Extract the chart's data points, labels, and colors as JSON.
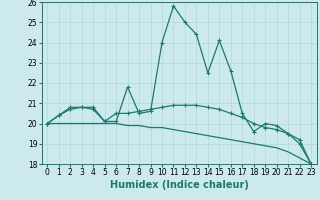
{
  "xlabel": "Humidex (Indice chaleur)",
  "x": [
    0,
    1,
    2,
    3,
    4,
    5,
    6,
    7,
    8,
    9,
    10,
    11,
    12,
    13,
    14,
    15,
    16,
    17,
    18,
    19,
    20,
    21,
    22,
    23
  ],
  "line1": [
    20.0,
    20.4,
    20.8,
    20.8,
    20.8,
    20.1,
    20.1,
    21.8,
    20.5,
    20.6,
    24.0,
    25.8,
    25.0,
    24.4,
    22.5,
    24.1,
    22.6,
    20.5,
    19.6,
    20.0,
    19.9,
    19.5,
    19.0,
    18.0
  ],
  "line2": [
    20.0,
    20.4,
    20.7,
    20.8,
    20.7,
    20.1,
    20.5,
    20.5,
    20.6,
    20.7,
    20.8,
    20.9,
    20.9,
    20.9,
    20.8,
    20.7,
    20.5,
    20.3,
    20.0,
    19.8,
    19.7,
    19.5,
    19.2,
    18.0
  ],
  "line3": [
    20.0,
    20.0,
    20.0,
    20.0,
    20.0,
    20.0,
    20.0,
    19.9,
    19.9,
    19.8,
    19.8,
    19.7,
    19.6,
    19.5,
    19.4,
    19.3,
    19.2,
    19.1,
    19.0,
    18.9,
    18.8,
    18.6,
    18.3,
    18.0
  ],
  "line_color": "#1a7a6e",
  "bg_color": "#cce9ec",
  "grid_color": "#b0d8dc",
  "ylim": [
    18,
    26
  ],
  "yticks": [
    18,
    19,
    20,
    21,
    22,
    23,
    24,
    25,
    26
  ],
  "xticks": [
    0,
    1,
    2,
    3,
    4,
    5,
    6,
    7,
    8,
    9,
    10,
    11,
    12,
    13,
    14,
    15,
    16,
    17,
    18,
    19,
    20,
    21,
    22,
    23
  ],
  "markersize": 3.5,
  "linewidth": 0.9,
  "tick_fontsize": 5.5,
  "label_fontsize": 7
}
